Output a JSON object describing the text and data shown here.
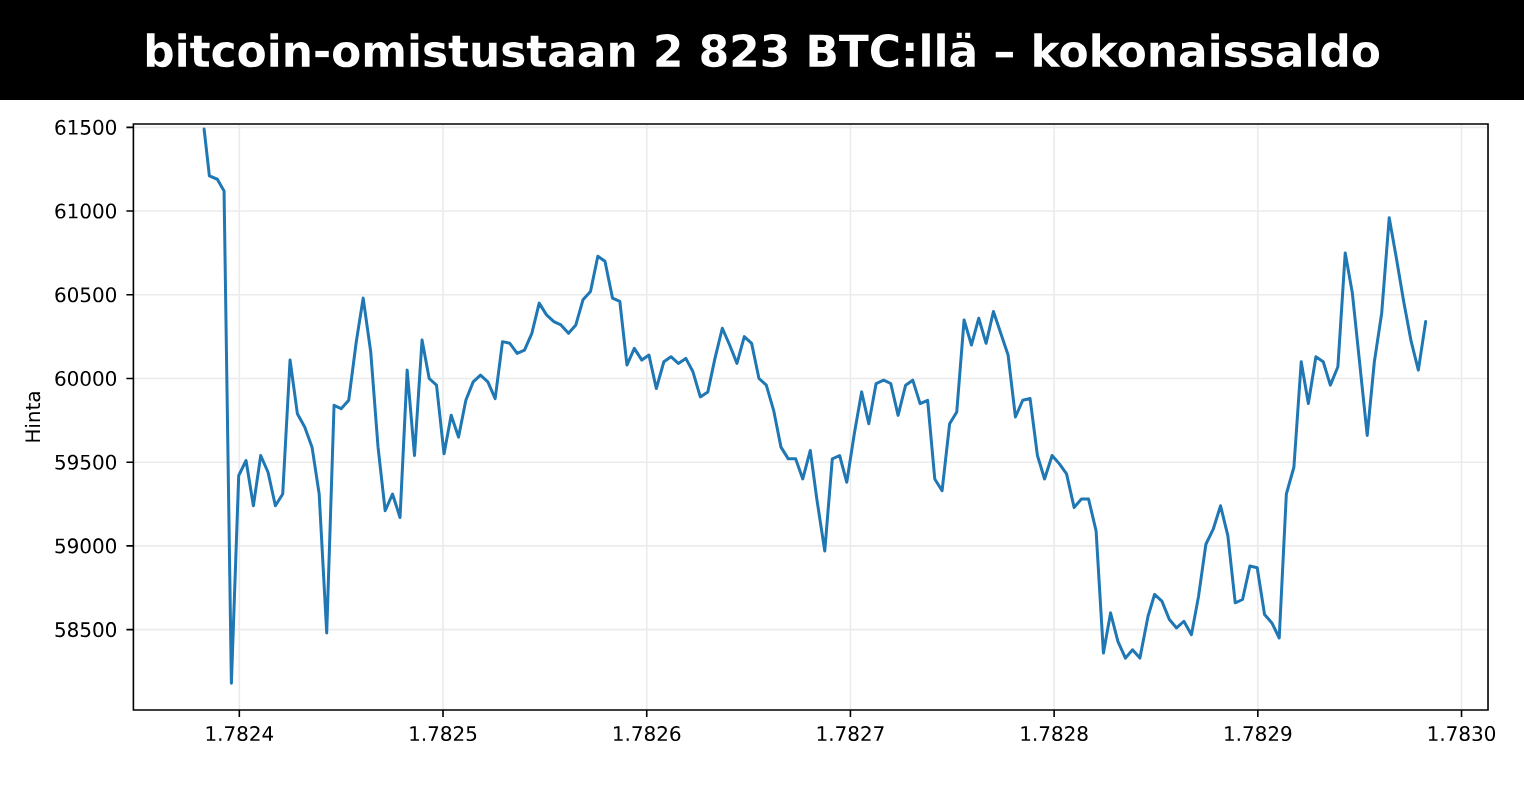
{
  "chart_data": {
    "type": "line",
    "title": "bitcoin-omistustaan 2 823 BTC:llä – kokonaissaldo",
    "ylabel": "Hinta",
    "x": [
      1.7823827,
      1.7823853,
      1.7823892,
      1.7823925,
      1.7823961,
      1.7823997,
      1.7824033,
      1.7824069,
      1.7824105,
      1.7824141,
      1.7824177,
      1.7824213,
      1.7824249,
      1.7824285,
      1.7824321,
      1.7824357,
      1.7824392,
      1.7824429,
      1.7824465,
      1.78245,
      1.7824537,
      1.7824573,
      1.7824608,
      1.7824645,
      1.7824681,
      1.7824716,
      1.7824752,
      1.7824789,
      1.7824824,
      1.782486,
      1.7824897,
      1.7824932,
      1.7824968,
      1.7825005,
      1.782504,
      1.7825076,
      1.7825112,
      1.7825148,
      1.7825184,
      1.782522,
      1.7825256,
      1.7825292,
      1.7825328,
      1.7825364,
      1.78254,
      1.7825436,
      1.7825472,
      1.7825508,
      1.7825544,
      1.7825579,
      1.7825616,
      1.7825652,
      1.7825687,
      1.7825724,
      1.782576,
      1.7825795,
      1.7825832,
      1.7825868,
      1.7825903,
      1.7825939,
      1.7825976,
      1.7826011,
      1.7826047,
      1.7826084,
      1.7826119,
      1.7826155,
      1.7826192,
      1.7826227,
      1.7826263,
      1.78263,
      1.7826335,
      1.7826371,
      1.7826407,
      1.7826443,
      1.7826479,
      1.7826515,
      1.7826551,
      1.7826587,
      1.7826623,
      1.7826659,
      1.7826695,
      1.7826731,
      1.7826766,
      1.7826803,
      1.7826835,
      1.7826874,
      1.7826911,
      1.7826947,
      1.7826982,
      1.7827019,
      1.7827055,
      1.782709,
      1.7827126,
      1.7827163,
      1.7827198,
      1.7827234,
      1.7827271,
      1.7827306,
      1.7827342,
      1.7827379,
      1.7827414,
      1.782745,
      1.7827487,
      1.7827522,
      1.7827558,
      1.7827594,
      1.782763,
      1.7827666,
      1.7827702,
      1.7827738,
      1.7827774,
      1.782781,
      1.7827846,
      1.7827882,
      1.7827918,
      1.7827953,
      1.782799,
      1.7828026,
      1.7828061,
      1.7828098,
      1.7828134,
      1.7828169,
      1.7828206,
      1.7828242,
      1.7828277,
      1.7828313,
      1.782835,
      1.7828385,
      1.7828421,
      1.7828461,
      1.7828493,
      1.7828529,
      1.7828566,
      1.7828601,
      1.7828637,
      1.7828674,
      1.7828709,
      1.7828745,
      1.7828781,
      1.7828817,
      1.7828853,
      1.7828889,
      1.7828925,
      1.7828961,
      1.7828997,
      1.7829033,
      1.7829069,
      1.7829105,
      1.782914,
      1.7829177,
      1.7829213,
      1.7829248,
      1.7829285,
      1.7829321,
      1.7829356,
      1.7829393,
      1.7829429,
      1.7829464,
      1.7829501,
      1.7829537,
      1.7829572,
      1.7829608,
      1.7829645,
      1.782968,
      1.7829716,
      1.7829753,
      1.7829788,
      1.7829824
    ],
    "series": [
      {
        "color": "#1f77b4",
        "values": [
          61490,
          61210,
          61190,
          61120,
          58180,
          59420,
          59510,
          59240,
          59540,
          59440,
          59240,
          59310,
          60110,
          59790,
          59710,
          59590,
          59310,
          58480,
          59840,
          59820,
          59870,
          60210,
          60480,
          60160,
          59590,
          59210,
          59310,
          59170,
          60050,
          59540,
          60230,
          60000,
          59960,
          59550,
          59780,
          59650,
          59870,
          59980,
          60020,
          59980,
          59880,
          60220,
          60210,
          60150,
          60170,
          60270,
          60450,
          60380,
          60340,
          60320,
          60270,
          60320,
          60470,
          60520,
          60730,
          60700,
          60480,
          60460,
          60080,
          60180,
          60110,
          60140,
          59940,
          60100,
          60130,
          60090,
          60120,
          60040,
          59890,
          59920,
          60120,
          60300,
          60200,
          60090,
          60250,
          60210,
          60000,
          59960,
          59810,
          59590,
          59520,
          59520,
          59400,
          59570,
          59280,
          58970,
          59520,
          59540,
          59380,
          59670,
          59920,
          59730,
          59970,
          59990,
          59970,
          59780,
          59960,
          59990,
          59850,
          59870,
          59400,
          59330,
          59730,
          59800,
          60350,
          60200,
          60360,
          60210,
          60400,
          60270,
          60140,
          59770,
          59870,
          59880,
          59540,
          59400,
          59540,
          59490,
          59430,
          59230,
          59280,
          59280,
          59090,
          58360,
          58600,
          58430,
          58330,
          58380,
          58330,
          58580,
          58710,
          58670,
          58560,
          58510,
          58550,
          58470,
          58700,
          59010,
          59100,
          59240,
          59060,
          58660,
          58680,
          58880,
          58870,
          58590,
          58540,
          58450,
          59310,
          59470,
          60100,
          59850,
          60130,
          60100,
          59960,
          60070,
          60750,
          60510,
          60080,
          59660,
          60100,
          60390,
          60960,
          60720,
          60460,
          60220,
          60050,
          60340
        ]
      }
    ],
    "xlim": [
      1.782348,
      1.783013
    ],
    "ylim": [
      58020,
      61520
    ],
    "xticks": [
      1.7824,
      1.7825,
      1.7826,
      1.7827,
      1.7828,
      1.7829,
      {
        "value": 1.783,
        "label": "1.7830"
      }
    ],
    "yticks": [
      58500,
      59000,
      59500,
      60000,
      60500,
      61000,
      61500
    ],
    "grid": true,
    "marker": "none",
    "line_style": "solid"
  }
}
